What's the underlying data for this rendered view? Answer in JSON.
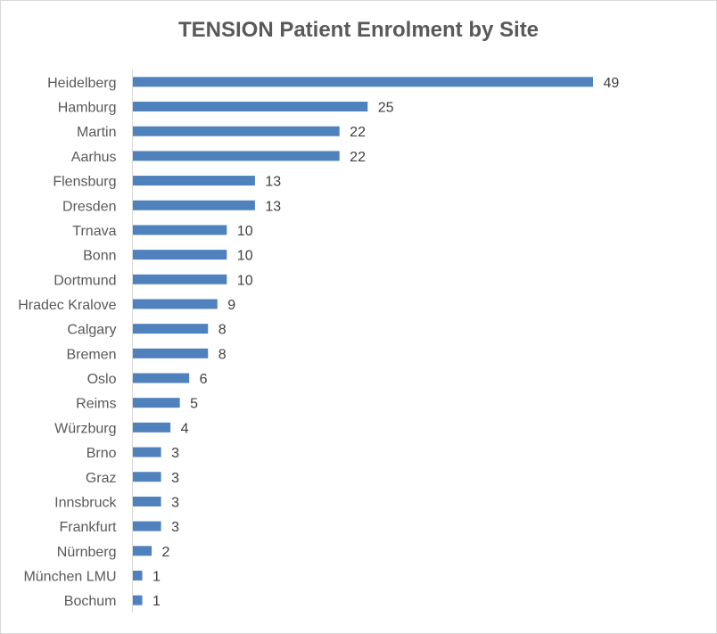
{
  "chart_data": {
    "type": "bar",
    "orientation": "horizontal",
    "title": "TENSION Patient Enrolment by Site",
    "categories": [
      "Heidelberg",
      "Hamburg",
      "Martin",
      "Aarhus",
      "Flensburg",
      "Dresden",
      "Trnava",
      "Bonn",
      "Dortmund",
      "Hradec Kralove",
      "Calgary",
      "Bremen",
      "Oslo",
      "Reims",
      "Würzburg",
      "Brno",
      "Graz",
      "Innsbruck",
      "Frankfurt",
      "Nürnberg",
      "München LMU",
      "Bochum"
    ],
    "values": [
      49,
      25,
      22,
      22,
      13,
      13,
      10,
      10,
      10,
      9,
      8,
      8,
      6,
      5,
      4,
      3,
      3,
      3,
      3,
      2,
      1,
      1
    ],
    "xlim": [
      0,
      49
    ],
    "data_labels": true,
    "grid": false,
    "legend": "none",
    "bar_color": "#4f81bd"
  }
}
